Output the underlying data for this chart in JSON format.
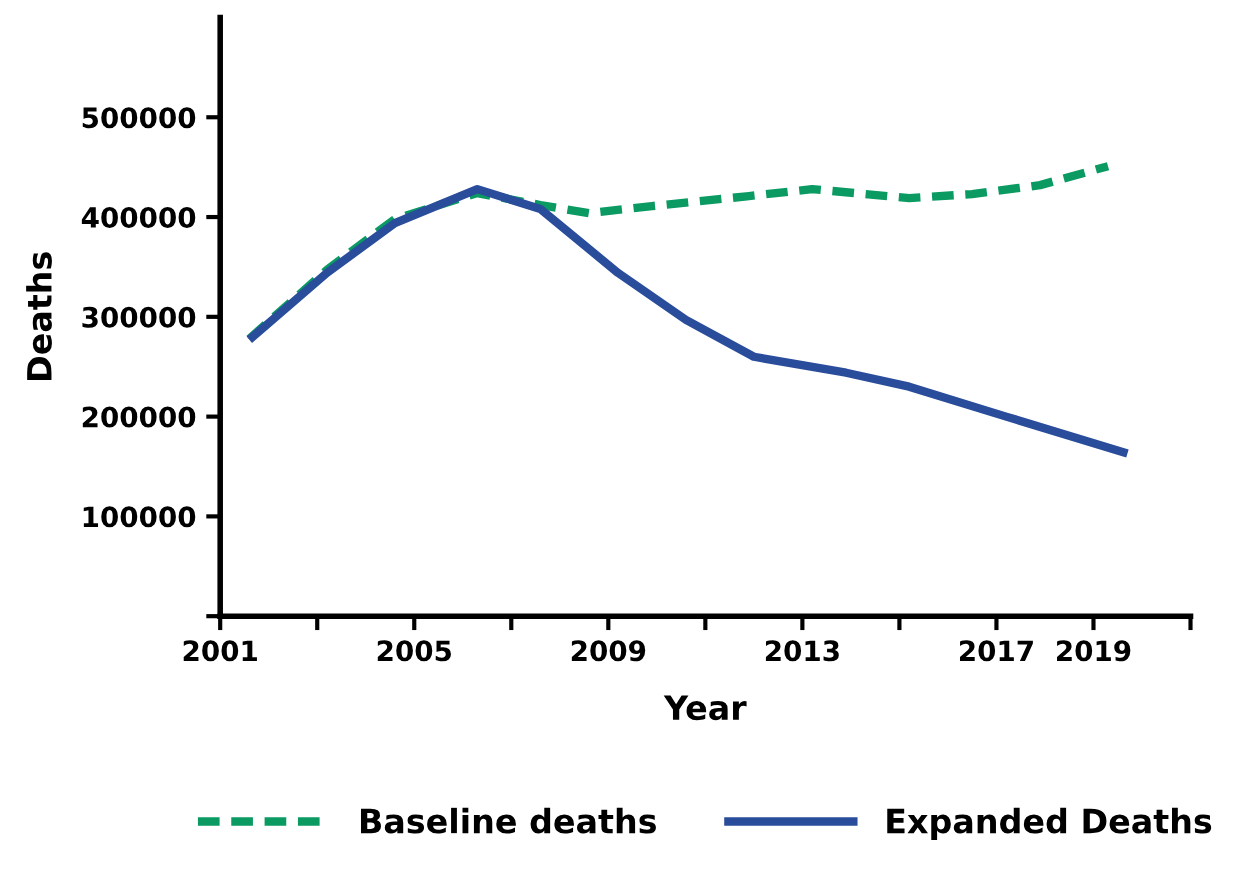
{
  "chart_data": {
    "type": "line",
    "xlabel": "Year",
    "ylabel": "Deaths",
    "xlim": [
      2001,
      2021
    ],
    "ylim": [
      0,
      600000
    ],
    "xticks": [
      2001,
      {
        "value": 2003,
        "label": null
      },
      2005,
      {
        "value": 2007,
        "label": null
      },
      2009,
      {
        "value": 2011,
        "label": null
      },
      2013,
      {
        "value": 2015,
        "label": null
      },
      2017,
      2019,
      {
        "value": 2021,
        "label": null
      }
    ],
    "yticks": [
      {
        "value": 0,
        "label": null
      },
      100000,
      200000,
      300000,
      400000,
      500000
    ],
    "grid": false,
    "legend": "bottom",
    "marker": "none",
    "series": [
      {
        "name": "Baseline deaths",
        "color": "#0a9a62",
        "line_style": "dashed",
        "x": [
          2001.6,
          2003.2,
          2004.6,
          2006.3,
          2007.6,
          2008.6,
          2009.9,
          2011.9,
          2013.2,
          2015.2,
          2016.5,
          2017.9,
          2019.3
        ],
        "values": [
          278000,
          347000,
          398000,
          424000,
          412000,
          404000,
          411000,
          421000,
          428000,
          419000,
          423000,
          432000,
          451000
        ]
      },
      {
        "name": "Expanded Deaths",
        "color": "#2a4d9b",
        "line_style": "solid",
        "x": [
          2001.6,
          2003.2,
          2004.6,
          2006.3,
          2007.6,
          2009.2,
          2010.6,
          2012.0,
          2013.9,
          2015.2,
          2017.2,
          2019.7
        ],
        "values": [
          277000,
          344000,
          394000,
          428000,
          408000,
          344000,
          297000,
          260000,
          244000,
          230000,
          200000,
          163000
        ]
      }
    ]
  }
}
